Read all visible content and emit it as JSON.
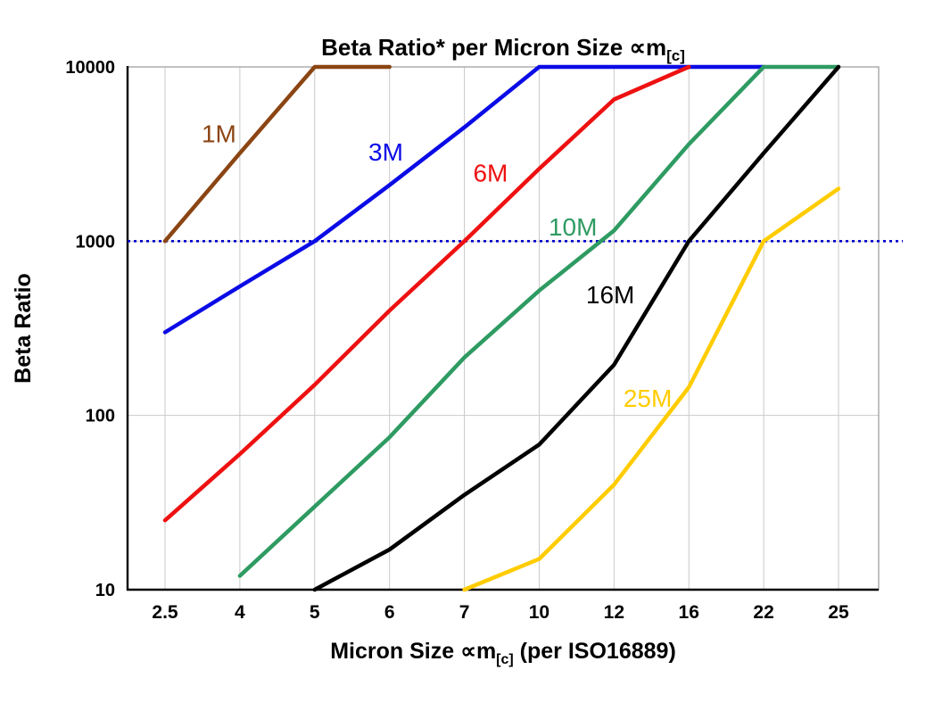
{
  "chart_data": {
    "type": "line",
    "title": {
      "main": "Beta Ratio* per Micron Size ∝m",
      "sub": "[c]"
    },
    "xlabel": {
      "pre": "Micron Size ∝m",
      "sub": "[c]",
      "post": " (per ISO16889)"
    },
    "ylabel": "Beta Ratio",
    "x_categories": [
      "2.5",
      "4",
      "5",
      "6",
      "7",
      "10",
      "12",
      "16",
      "22",
      "25"
    ],
    "y_scale": "log",
    "y_ticks": [
      10,
      100,
      1000,
      10000
    ],
    "ylim": [
      10,
      10000
    ],
    "grid": {
      "vertical": true,
      "horizontal": true,
      "color": "#c9c9c9"
    },
    "reference_line": {
      "value": 1000,
      "color": "#0000cc",
      "style": "dotted"
    },
    "series": [
      {
        "name": "1M",
        "color": "#8B4513",
        "points": [
          [
            0,
            1000
          ],
          [
            1,
            3200
          ],
          [
            2,
            10000
          ],
          [
            3,
            10000
          ]
        ]
      },
      {
        "name": "3M",
        "color": "#0B0BE6",
        "points": [
          [
            0,
            300
          ],
          [
            1,
            550
          ],
          [
            2,
            1000
          ],
          [
            3,
            2100
          ],
          [
            4,
            4500
          ],
          [
            5,
            10000
          ],
          [
            8,
            10000
          ]
        ]
      },
      {
        "name": "6M",
        "color": "#EE1111",
        "points": [
          [
            0,
            25
          ],
          [
            1,
            60
          ],
          [
            2,
            150
          ],
          [
            3,
            400
          ],
          [
            4,
            1000
          ],
          [
            5,
            2600
          ],
          [
            6,
            6500
          ],
          [
            7,
            10000
          ]
        ]
      },
      {
        "name": "10M",
        "color": "#2E9B62",
        "points": [
          [
            1,
            12
          ],
          [
            2,
            30
          ],
          [
            3,
            75
          ],
          [
            4,
            215
          ],
          [
            5,
            520
          ],
          [
            6,
            1150
          ],
          [
            7,
            3600
          ],
          [
            8,
            10000
          ],
          [
            9,
            10000
          ]
        ]
      },
      {
        "name": "16M",
        "color": "#000000",
        "points": [
          [
            2,
            10
          ],
          [
            3,
            17
          ],
          [
            4,
            35
          ],
          [
            5,
            68
          ],
          [
            6,
            195
          ],
          [
            7,
            1000
          ],
          [
            8,
            3200
          ],
          [
            9,
            10000
          ]
        ]
      },
      {
        "name": "25M",
        "color": "#FFCC00",
        "points": [
          [
            4,
            10
          ],
          [
            5,
            15
          ],
          [
            6,
            40
          ],
          [
            7,
            145
          ],
          [
            8,
            1000
          ],
          [
            9,
            2000
          ]
        ]
      }
    ],
    "labels": [
      {
        "text": "1M",
        "color": "#8B4513",
        "cat": 0.72,
        "value": 3700
      },
      {
        "text": "3M",
        "color": "#0B0BE6",
        "cat": 2.95,
        "value": 2900
      },
      {
        "text": "6M",
        "color": "#EE1111",
        "cat": 4.35,
        "value": 2200
      },
      {
        "text": "10M",
        "color": "#2E9B62",
        "cat": 5.45,
        "value": 1080
      },
      {
        "text": "16M",
        "color": "#000000",
        "cat": 5.95,
        "value": 440
      },
      {
        "text": "25M",
        "color": "#FFCC00",
        "cat": 6.45,
        "value": 112
      }
    ]
  }
}
